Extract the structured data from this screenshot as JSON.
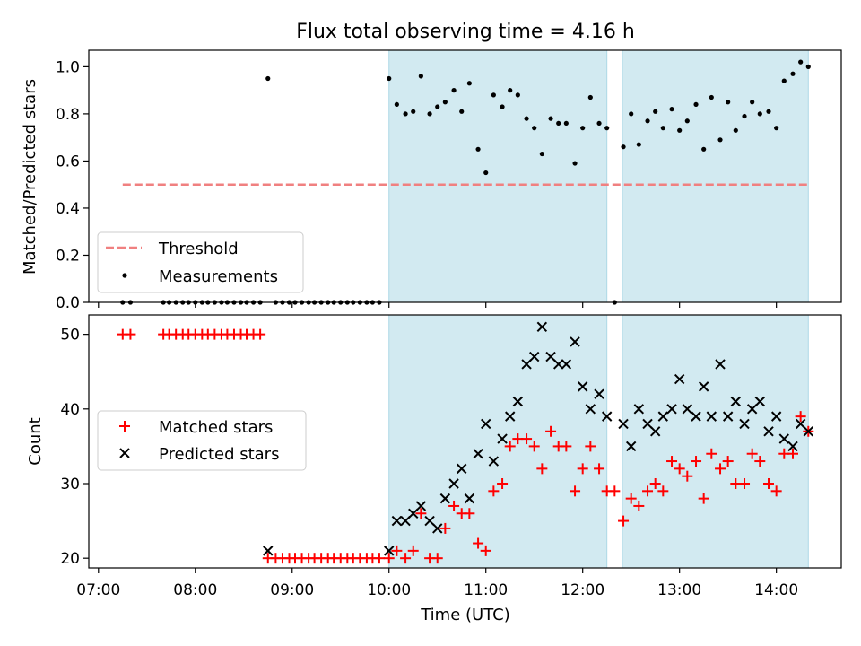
{
  "chart_data": {
    "title": "Flux total observing time = 4.16 h",
    "shared_x": {
      "label": "Time (UTC)",
      "tick_labels": [
        "07:00",
        "08:00",
        "09:00",
        "10:00",
        "11:00",
        "12:00",
        "13:00",
        "14:00"
      ],
      "tick_hours": [
        7,
        8,
        9,
        10,
        11,
        12,
        13,
        14
      ],
      "range_hours": [
        6.9,
        14.67
      ]
    },
    "observing_windows": [
      [
        10.0,
        12.25
      ],
      [
        12.41,
        14.33
      ]
    ],
    "window_color": "#add8e6",
    "top": {
      "type": "scatter",
      "ylabel": "Matched/Predicted stars",
      "ylim": [
        0,
        1.07
      ],
      "yticks": [
        0.0,
        0.2,
        0.4,
        0.6,
        0.8,
        1.0
      ],
      "ytick_labels": [
        "0.0",
        "0.2",
        "0.4",
        "0.6",
        "0.8",
        "1.0"
      ],
      "threshold": {
        "label": "Threshold",
        "value": 0.5,
        "x_range": [
          7.25,
          14.33
        ],
        "color": "#f08080"
      },
      "measurements_label": "Measurements",
      "measurements": [
        [
          7.25,
          0
        ],
        [
          7.33,
          0
        ],
        [
          7.67,
          0
        ],
        [
          7.73,
          0
        ],
        [
          7.8,
          0
        ],
        [
          7.87,
          0
        ],
        [
          7.93,
          0
        ],
        [
          8.0,
          0
        ],
        [
          8.07,
          0
        ],
        [
          8.13,
          0
        ],
        [
          8.2,
          0
        ],
        [
          8.27,
          0
        ],
        [
          8.33,
          0
        ],
        [
          8.4,
          0
        ],
        [
          8.47,
          0
        ],
        [
          8.53,
          0
        ],
        [
          8.6,
          0
        ],
        [
          8.67,
          0
        ],
        [
          8.75,
          0.95
        ],
        [
          8.83,
          0
        ],
        [
          8.9,
          0
        ],
        [
          8.97,
          0
        ],
        [
          9.03,
          0
        ],
        [
          9.1,
          0
        ],
        [
          9.17,
          0
        ],
        [
          9.23,
          0
        ],
        [
          9.3,
          0
        ],
        [
          9.37,
          0
        ],
        [
          9.43,
          0
        ],
        [
          9.5,
          0
        ],
        [
          9.57,
          0
        ],
        [
          9.63,
          0
        ],
        [
          9.7,
          0
        ],
        [
          9.77,
          0
        ],
        [
          9.83,
          0
        ],
        [
          9.9,
          0
        ],
        [
          10.0,
          0.95
        ],
        [
          10.08,
          0.84
        ],
        [
          10.17,
          0.8
        ],
        [
          10.25,
          0.81
        ],
        [
          10.33,
          0.96
        ],
        [
          10.42,
          0.8
        ],
        [
          10.5,
          0.83
        ],
        [
          10.58,
          0.85
        ],
        [
          10.67,
          0.9
        ],
        [
          10.75,
          0.81
        ],
        [
          10.83,
          0.93
        ],
        [
          10.92,
          0.65
        ],
        [
          11.0,
          0.55
        ],
        [
          11.08,
          0.88
        ],
        [
          11.17,
          0.83
        ],
        [
          11.25,
          0.9
        ],
        [
          11.33,
          0.88
        ],
        [
          11.42,
          0.78
        ],
        [
          11.5,
          0.74
        ],
        [
          11.58,
          0.63
        ],
        [
          11.67,
          0.78
        ],
        [
          11.75,
          0.76
        ],
        [
          11.83,
          0.76
        ],
        [
          11.92,
          0.59
        ],
        [
          12.0,
          0.74
        ],
        [
          12.08,
          0.87
        ],
        [
          12.17,
          0.76
        ],
        [
          12.25,
          0.74
        ],
        [
          12.33,
          0
        ],
        [
          12.42,
          0.66
        ],
        [
          12.5,
          0.8
        ],
        [
          12.58,
          0.67
        ],
        [
          12.67,
          0.77
        ],
        [
          12.75,
          0.81
        ],
        [
          12.83,
          0.74
        ],
        [
          12.92,
          0.82
        ],
        [
          13.0,
          0.73
        ],
        [
          13.08,
          0.77
        ],
        [
          13.17,
          0.84
        ],
        [
          13.25,
          0.65
        ],
        [
          13.33,
          0.87
        ],
        [
          13.42,
          0.69
        ],
        [
          13.5,
          0.85
        ],
        [
          13.58,
          0.73
        ],
        [
          13.67,
          0.79
        ],
        [
          13.75,
          0.85
        ],
        [
          13.83,
          0.8
        ],
        [
          13.92,
          0.81
        ],
        [
          14.0,
          0.74
        ],
        [
          14.08,
          0.94
        ],
        [
          14.17,
          0.97
        ],
        [
          14.25,
          1.02
        ],
        [
          14.33,
          1.0
        ]
      ]
    },
    "bottom": {
      "type": "scatter",
      "ylabel": "Count",
      "ylim": [
        18.7,
        52.6
      ],
      "yticks": [
        20,
        30,
        40,
        50
      ],
      "ytick_labels": [
        "20",
        "30",
        "40",
        "50"
      ],
      "series": [
        {
          "name": "Matched stars",
          "marker": "+",
          "color": "#ff0000",
          "points": [
            [
              7.25,
              50
            ],
            [
              7.33,
              50
            ],
            [
              7.67,
              50
            ],
            [
              7.73,
              50
            ],
            [
              7.8,
              50
            ],
            [
              7.87,
              50
            ],
            [
              7.93,
              50
            ],
            [
              8.0,
              50
            ],
            [
              8.07,
              50
            ],
            [
              8.13,
              50
            ],
            [
              8.2,
              50
            ],
            [
              8.27,
              50
            ],
            [
              8.33,
              50
            ],
            [
              8.4,
              50
            ],
            [
              8.47,
              50
            ],
            [
              8.53,
              50
            ],
            [
              8.6,
              50
            ],
            [
              8.67,
              50
            ],
            [
              8.75,
              20
            ],
            [
              8.83,
              20
            ],
            [
              8.9,
              20
            ],
            [
              8.97,
              20
            ],
            [
              9.03,
              20
            ],
            [
              9.1,
              20
            ],
            [
              9.17,
              20
            ],
            [
              9.23,
              20
            ],
            [
              9.3,
              20
            ],
            [
              9.37,
              20
            ],
            [
              9.43,
              20
            ],
            [
              9.5,
              20
            ],
            [
              9.57,
              20
            ],
            [
              9.63,
              20
            ],
            [
              9.7,
              20
            ],
            [
              9.77,
              20
            ],
            [
              9.83,
              20
            ],
            [
              9.9,
              20
            ],
            [
              10.0,
              20
            ],
            [
              10.08,
              21
            ],
            [
              10.17,
              20
            ],
            [
              10.25,
              21
            ],
            [
              10.33,
              26
            ],
            [
              10.42,
              20
            ],
            [
              10.5,
              20
            ],
            [
              10.58,
              24
            ],
            [
              10.67,
              27
            ],
            [
              10.75,
              26
            ],
            [
              10.83,
              26
            ],
            [
              10.92,
              22
            ],
            [
              11.0,
              21
            ],
            [
              11.08,
              29
            ],
            [
              11.17,
              30
            ],
            [
              11.25,
              35
            ],
            [
              11.33,
              36
            ],
            [
              11.42,
              36
            ],
            [
              11.5,
              35
            ],
            [
              11.58,
              32
            ],
            [
              11.67,
              37
            ],
            [
              11.75,
              35
            ],
            [
              11.83,
              35
            ],
            [
              11.92,
              29
            ],
            [
              12.0,
              32
            ],
            [
              12.08,
              35
            ],
            [
              12.17,
              32
            ],
            [
              12.25,
              29
            ],
            [
              12.33,
              29
            ],
            [
              12.42,
              25
            ],
            [
              12.5,
              28
            ],
            [
              12.58,
              27
            ],
            [
              12.67,
              29
            ],
            [
              12.75,
              30
            ],
            [
              12.83,
              29
            ],
            [
              12.92,
              33
            ],
            [
              13.0,
              32
            ],
            [
              13.08,
              31
            ],
            [
              13.17,
              33
            ],
            [
              13.25,
              28
            ],
            [
              13.33,
              34
            ],
            [
              13.42,
              32
            ],
            [
              13.5,
              33
            ],
            [
              13.58,
              30
            ],
            [
              13.67,
              30
            ],
            [
              13.75,
              34
            ],
            [
              13.83,
              33
            ],
            [
              13.92,
              30
            ],
            [
              14.0,
              29
            ],
            [
              14.08,
              34
            ],
            [
              14.17,
              34
            ],
            [
              14.25,
              39
            ],
            [
              14.33,
              37
            ]
          ]
        },
        {
          "name": "Predicted stars",
          "marker": "x",
          "color": "#000000",
          "points": [
            [
              8.75,
              21
            ],
            [
              10.0,
              21
            ],
            [
              10.08,
              25
            ],
            [
              10.17,
              25
            ],
            [
              10.25,
              26
            ],
            [
              10.33,
              27
            ],
            [
              10.42,
              25
            ],
            [
              10.5,
              24
            ],
            [
              10.58,
              28
            ],
            [
              10.67,
              30
            ],
            [
              10.75,
              32
            ],
            [
              10.83,
              28
            ],
            [
              10.92,
              34
            ],
            [
              11.0,
              38
            ],
            [
              11.08,
              33
            ],
            [
              11.17,
              36
            ],
            [
              11.25,
              39
            ],
            [
              11.33,
              41
            ],
            [
              11.42,
              46
            ],
            [
              11.5,
              47
            ],
            [
              11.58,
              51
            ],
            [
              11.67,
              47
            ],
            [
              11.75,
              46
            ],
            [
              11.83,
              46
            ],
            [
              11.92,
              49
            ],
            [
              12.0,
              43
            ],
            [
              12.08,
              40
            ],
            [
              12.17,
              42
            ],
            [
              12.25,
              39
            ],
            [
              12.42,
              38
            ],
            [
              12.5,
              35
            ],
            [
              12.58,
              40
            ],
            [
              12.67,
              38
            ],
            [
              12.75,
              37
            ],
            [
              12.83,
              39
            ],
            [
              12.92,
              40
            ],
            [
              13.0,
              44
            ],
            [
              13.08,
              40
            ],
            [
              13.17,
              39
            ],
            [
              13.25,
              43
            ],
            [
              13.33,
              39
            ],
            [
              13.42,
              46
            ],
            [
              13.5,
              39
            ],
            [
              13.58,
              41
            ],
            [
              13.67,
              38
            ],
            [
              13.75,
              40
            ],
            [
              13.83,
              41
            ],
            [
              13.92,
              37
            ],
            [
              14.0,
              39
            ],
            [
              14.08,
              36
            ],
            [
              14.17,
              35
            ],
            [
              14.25,
              38
            ],
            [
              14.33,
              37
            ]
          ]
        }
      ]
    }
  }
}
